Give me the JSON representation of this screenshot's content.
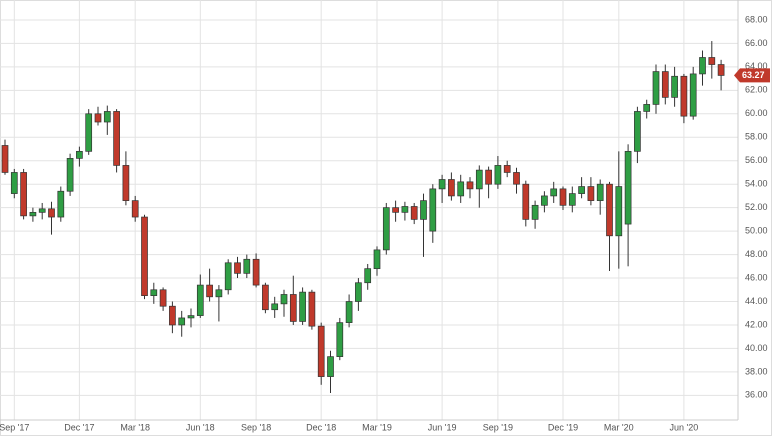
{
  "chart_data": {
    "type": "candlestick",
    "categories": [
      null,
      "Sep '17",
      null,
      null,
      null,
      null,
      null,
      null,
      "Dec '17",
      null,
      null,
      null,
      null,
      null,
      "Mar '18",
      null,
      null,
      null,
      null,
      null,
      null,
      "Jun '18",
      null,
      null,
      null,
      null,
      null,
      "Sep '18",
      null,
      null,
      null,
      null,
      null,
      null,
      "Dec '18",
      null,
      null,
      null,
      null,
      null,
      "Mar '19",
      null,
      null,
      null,
      null,
      null,
      null,
      "Jun '19",
      null,
      null,
      null,
      null,
      null,
      "Sep '19",
      null,
      null,
      null,
      null,
      null,
      null,
      "Dec '19",
      null,
      null,
      null,
      null,
      null,
      "Mar '20",
      null,
      null,
      null,
      null,
      null,
      null,
      "Jun '20",
      null,
      null,
      null,
      null
    ],
    "open": [
      57.3,
      53.2,
      55.0,
      51.3,
      51.6,
      51.9,
      51.2,
      53.4,
      56.2,
      56.8,
      60.0,
      59.3,
      60.2,
      55.6,
      52.6,
      51.2,
      44.5,
      45.0,
      43.6,
      42.0,
      42.6,
      42.8,
      45.4,
      44.4,
      45.0,
      47.3,
      46.4,
      47.6,
      45.4,
      43.3,
      43.8,
      44.6,
      42.3,
      44.8,
      41.9,
      37.6,
      39.3,
      42.2,
      44.0,
      45.6,
      46.8,
      48.4,
      52.0,
      51.6,
      52.1,
      51.0,
      50.0,
      53.6,
      54.4,
      53.0,
      54.2,
      53.6,
      55.2,
      54.0,
      55.6,
      55.0,
      54.0,
      51.0,
      52.2,
      53.0,
      53.6,
      52.2,
      53.2,
      53.8,
      52.6,
      54.0,
      49.6,
      50.6,
      56.8,
      60.2,
      60.8,
      63.6,
      61.4,
      63.2,
      59.8,
      63.4,
      64.8,
      64.2
    ],
    "high": [
      57.8,
      55.3,
      55.3,
      52.0,
      52.4,
      52.5,
      53.8,
      56.6,
      57.2,
      60.4,
      60.6,
      60.7,
      60.4,
      56.8,
      53.0,
      51.4,
      45.6,
      45.2,
      44.0,
      43.2,
      43.4,
      46.3,
      46.8,
      45.4,
      47.6,
      47.8,
      48.0,
      48.1,
      45.6,
      44.4,
      45.0,
      46.2,
      45.2,
      45.0,
      42.2,
      39.8,
      42.6,
      44.6,
      46.0,
      47.2,
      48.7,
      52.4,
      52.6,
      52.5,
      52.4,
      53.2,
      54.0,
      54.8,
      55.0,
      54.8,
      54.6,
      55.6,
      55.5,
      56.4,
      56.0,
      55.4,
      54.3,
      52.6,
      53.4,
      54.2,
      53.8,
      53.8,
      54.6,
      54.6,
      54.4,
      54.2,
      56.8,
      57.4,
      60.6,
      61.2,
      64.2,
      64.2,
      64.0,
      63.4,
      64.0,
      65.4,
      66.2,
      64.6
    ],
    "low": [
      54.8,
      52.8,
      51.0,
      50.8,
      51.0,
      49.7,
      50.8,
      53.0,
      55.5,
      56.5,
      59.0,
      58.2,
      55.0,
      52.2,
      50.8,
      44.2,
      43.8,
      43.2,
      41.3,
      41.0,
      41.8,
      42.6,
      44.0,
      42.3,
      44.6,
      46.0,
      46.0,
      45.2,
      43.0,
      42.6,
      42.7,
      42.0,
      42.0,
      41.6,
      36.9,
      36.2,
      39.0,
      41.8,
      43.2,
      45.0,
      46.2,
      48.0,
      50.8,
      50.9,
      50.6,
      47.8,
      49.0,
      52.4,
      52.6,
      52.4,
      52.8,
      52.0,
      52.8,
      53.6,
      54.6,
      53.2,
      50.4,
      50.2,
      51.6,
      52.4,
      51.8,
      51.6,
      52.8,
      52.2,
      51.4,
      46.6,
      46.8,
      47.0,
      55.8,
      59.6,
      60.0,
      60.8,
      60.6,
      59.2,
      59.5,
      62.4,
      63.0,
      62.0
    ],
    "close": [
      55.0,
      55.0,
      51.3,
      51.6,
      51.9,
      51.2,
      53.4,
      56.2,
      56.8,
      60.0,
      59.3,
      60.2,
      55.6,
      52.6,
      51.2,
      44.5,
      45.0,
      43.6,
      42.0,
      42.6,
      42.8,
      45.4,
      44.4,
      45.0,
      47.3,
      46.4,
      47.6,
      45.4,
      43.3,
      43.8,
      44.6,
      42.3,
      44.8,
      41.9,
      37.6,
      39.3,
      42.2,
      44.0,
      45.6,
      46.8,
      48.4,
      52.0,
      51.6,
      52.1,
      51.0,
      52.6,
      53.6,
      54.4,
      53.0,
      54.2,
      53.6,
      55.2,
      54.0,
      55.6,
      55.0,
      54.0,
      51.0,
      52.2,
      53.0,
      53.6,
      52.2,
      53.2,
      53.8,
      52.6,
      54.0,
      49.6,
      53.8,
      56.8,
      60.2,
      60.8,
      63.6,
      61.4,
      63.2,
      59.8,
      63.4,
      64.8,
      64.2,
      63.27
    ],
    "up_color": "#2f9e44",
    "down_color": "#c0392b",
    "last_price": 63.27,
    "ylim": [
      33.9,
      69.7
    ],
    "yticks": [
      {
        "value": 36,
        "label": "36.00"
      },
      {
        "value": 38,
        "label": "38.00"
      },
      {
        "value": 40,
        "label": "40.00"
      },
      {
        "value": 42,
        "label": "42.00"
      },
      {
        "value": 44,
        "label": "44.00"
      },
      {
        "value": 46,
        "label": "46.00"
      },
      {
        "value": 48,
        "label": "48.00"
      },
      {
        "value": 50,
        "label": "50.00"
      },
      {
        "value": 52,
        "label": "52.00"
      },
      {
        "value": 54,
        "label": "54.00"
      },
      {
        "value": 56,
        "label": "56.00"
      },
      {
        "value": 58,
        "label": "58.00"
      },
      {
        "value": 60,
        "label": "60.00"
      },
      {
        "value": 62,
        "label": "62.00"
      },
      {
        "value": 64,
        "label": "64.00"
      },
      {
        "value": 66,
        "label": "66.00"
      },
      {
        "value": 68,
        "label": "68.00"
      }
    ],
    "grid": true
  }
}
